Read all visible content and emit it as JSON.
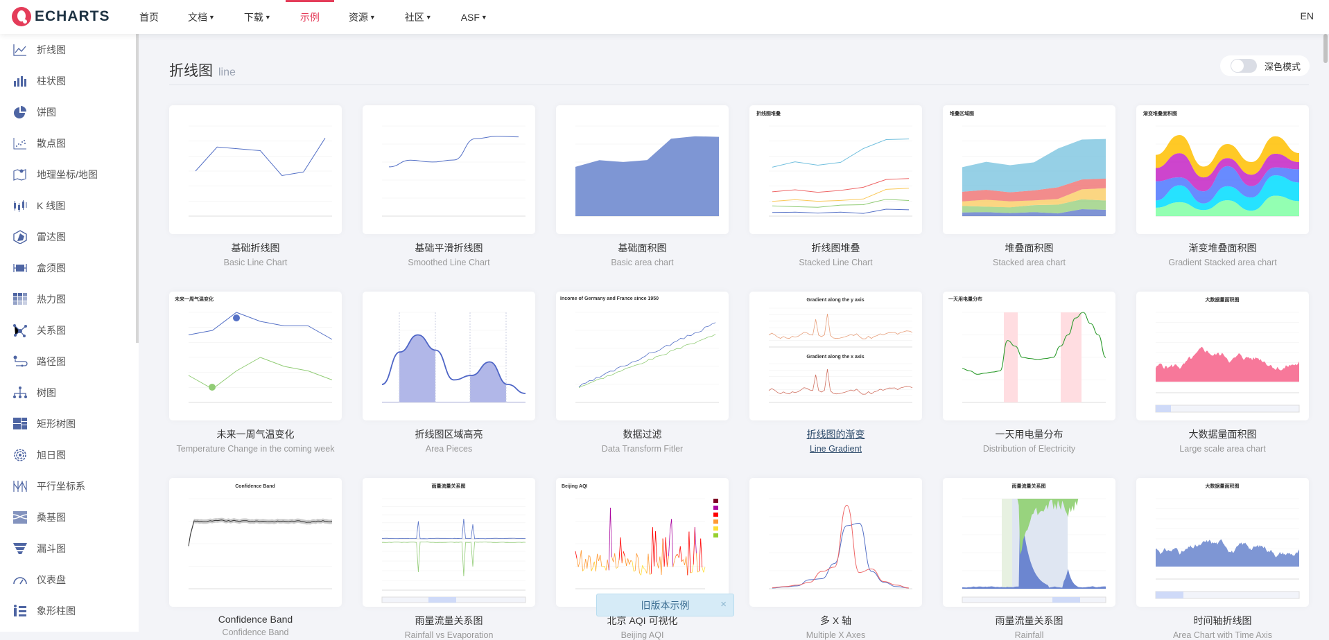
{
  "header": {
    "logo_text": "ECHARTS",
    "nav": [
      {
        "label": "首页",
        "caret": false
      },
      {
        "label": "文档",
        "caret": true
      },
      {
        "label": "下载",
        "caret": true
      },
      {
        "label": "示例",
        "caret": false,
        "active": true
      },
      {
        "label": "资源",
        "caret": true
      },
      {
        "label": "社区",
        "caret": true
      },
      {
        "label": "ASF",
        "caret": true
      }
    ],
    "lang": "EN",
    "accent": "#e43c59"
  },
  "sidebar": {
    "items": [
      {
        "label": "折线图",
        "icon": "line-chart-icon"
      },
      {
        "label": "柱状图",
        "icon": "bar-chart-icon"
      },
      {
        "label": "饼图",
        "icon": "pie-chart-icon"
      },
      {
        "label": "散点图",
        "icon": "scatter-chart-icon"
      },
      {
        "label": "地理坐标/地图",
        "icon": "map-icon"
      },
      {
        "label": "K 线图",
        "icon": "candlestick-icon"
      },
      {
        "label": "雷达图",
        "icon": "radar-icon"
      },
      {
        "label": "盒须图",
        "icon": "boxplot-icon"
      },
      {
        "label": "热力图",
        "icon": "heatmap-icon"
      },
      {
        "label": "关系图",
        "icon": "graph-icon"
      },
      {
        "label": "路径图",
        "icon": "lines-icon"
      },
      {
        "label": "树图",
        "icon": "tree-icon"
      },
      {
        "label": "矩形树图",
        "icon": "treemap-icon"
      },
      {
        "label": "旭日图",
        "icon": "sunburst-icon"
      },
      {
        "label": "平行坐标系",
        "icon": "parallel-icon"
      },
      {
        "label": "桑基图",
        "icon": "sankey-icon"
      },
      {
        "label": "漏斗图",
        "icon": "funnel-icon"
      },
      {
        "label": "仪表盘",
        "icon": "gauge-icon"
      },
      {
        "label": "象形柱图",
        "icon": "pictorial-bar-icon"
      }
    ],
    "icon_color": "#4e65a3"
  },
  "main": {
    "title": "折线图",
    "subtitle": "line",
    "dark_mode": {
      "label": "深色模式",
      "on": false
    },
    "examples": [
      {
        "title": "基础折线图",
        "subtitle": "Basic Line Chart",
        "thumb": "basic-line"
      },
      {
        "title": "基础平滑折线图",
        "subtitle": "Smoothed Line Chart",
        "thumb": "smooth-line"
      },
      {
        "title": "基础面积图",
        "subtitle": "Basic area chart",
        "thumb": "basic-area"
      },
      {
        "title": "折线图堆叠",
        "subtitle": "Stacked Line Chart",
        "thumb": "stacked-line",
        "thumb_title": "折线图堆叠"
      },
      {
        "title": "堆叠面积图",
        "subtitle": "Stacked area chart",
        "thumb": "stacked-area",
        "thumb_title": "堆叠区域图"
      },
      {
        "title": "渐变堆叠面积图",
        "subtitle": "Gradient Stacked area chart",
        "thumb": "gradient-stacked",
        "thumb_title": "渐变堆叠面积图"
      },
      {
        "title": "未来一周气温变化",
        "subtitle": "Temperature Change in the coming week",
        "thumb": "temperature",
        "thumb_title": "未来一周气温变化"
      },
      {
        "title": "折线图区域高亮",
        "subtitle": "Area Pieces",
        "thumb": "area-pieces"
      },
      {
        "title": "数据过滤",
        "subtitle": "Data Transform Fitler",
        "thumb": "data-transform",
        "thumb_title": "Income of Germany and France since 1950"
      },
      {
        "title": "折线图的渐变",
        "subtitle": "Line Gradient",
        "thumb": "line-gradient",
        "thumb_title": "Gradient along the y axis",
        "thumb_title2": "Gradient along the x axis",
        "hovered": true
      },
      {
        "title": "一天用电量分布",
        "subtitle": "Distribution of Electricity",
        "thumb": "electricity",
        "thumb_title": "一天用电量分布"
      },
      {
        "title": "大数据量面积图",
        "subtitle": "Large scale area chart",
        "thumb": "large-area",
        "thumb_title": "大数据量面积图"
      },
      {
        "title": "Confidence Band",
        "subtitle": "Confidence Band",
        "thumb": "confidence",
        "thumb_title": "Confidence Band"
      },
      {
        "title": "雨量流量关系图",
        "subtitle": "Rainfall vs Evaporation",
        "thumb": "rainfall",
        "thumb_title": "雨量流量关系图"
      },
      {
        "title": "北京 AQI 可视化",
        "subtitle": "Beijing AQI",
        "thumb": "aqi",
        "thumb_title": "Beijing AQI"
      },
      {
        "title": "多 X 轴",
        "subtitle": "Multiple X Axes",
        "thumb": "multi-x"
      },
      {
        "title": "雨量流量关系图",
        "subtitle": "Rainfall",
        "thumb": "rainfall2",
        "thumb_title": "雨量流量关系图"
      },
      {
        "title": "时间轴折线图",
        "subtitle": "Area Chart with Time Axis",
        "thumb": "time-area",
        "thumb_title": "大数据量面积图"
      }
    ]
  },
  "toast": {
    "label": "旧版本示例",
    "close": "×"
  }
}
